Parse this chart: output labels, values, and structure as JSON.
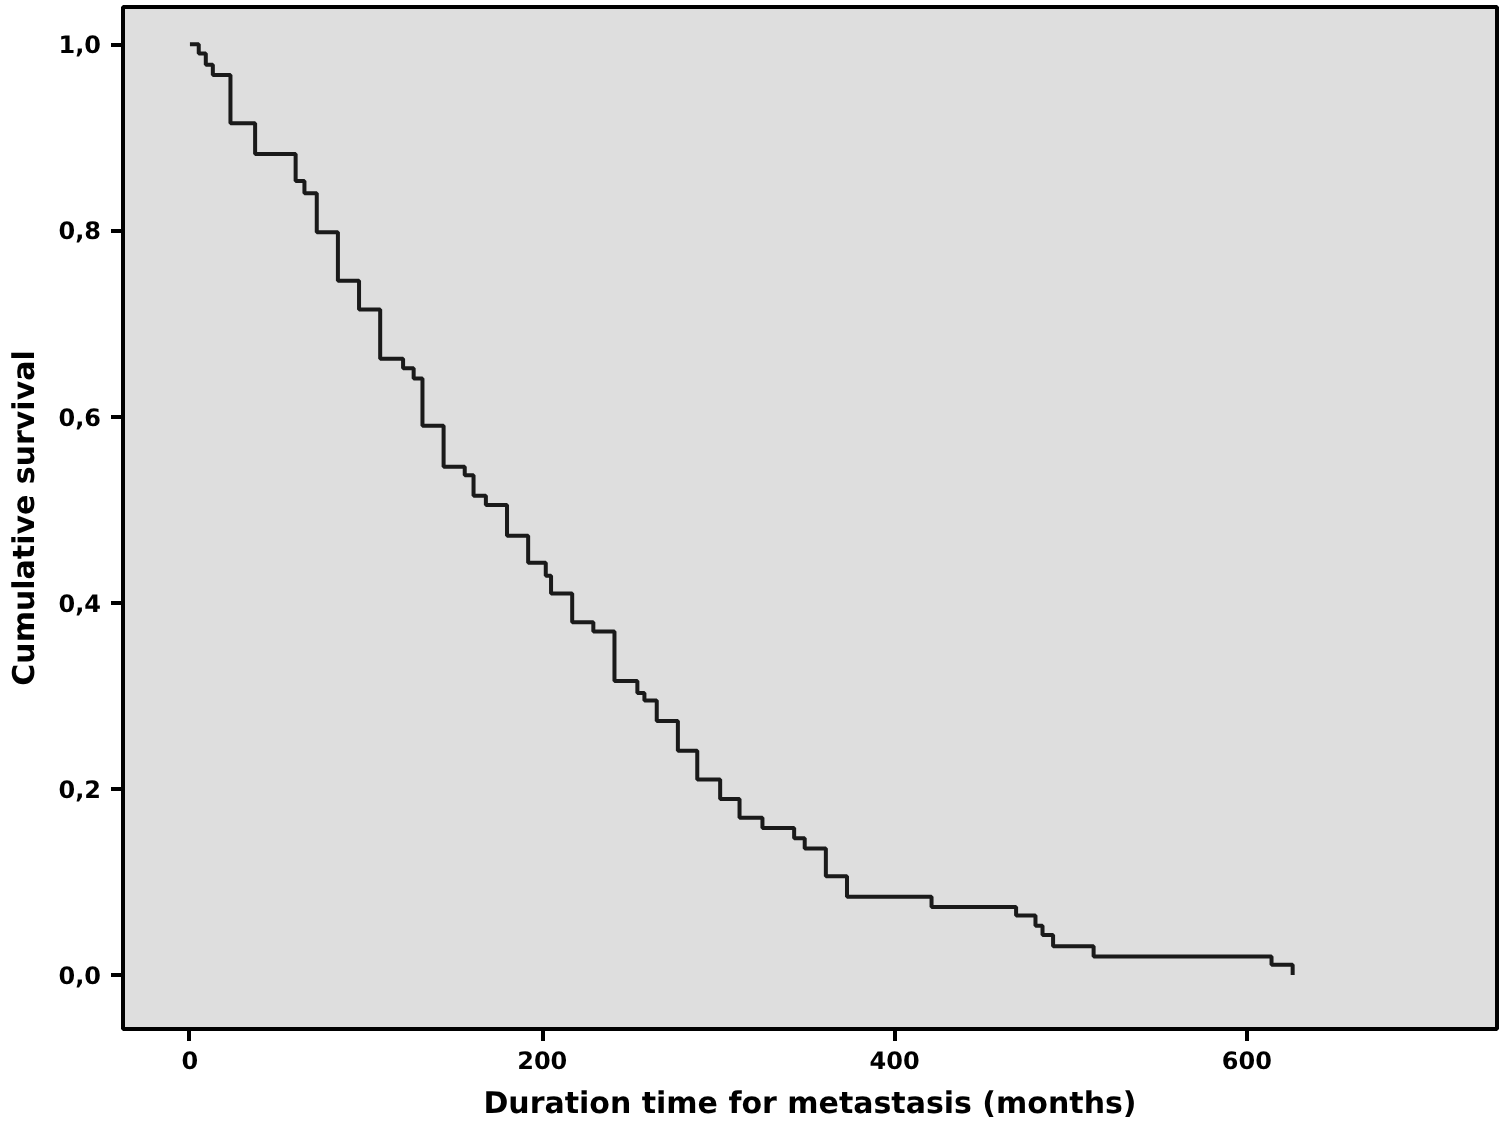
{
  "chart_data": {
    "type": "step",
    "xlabel": "Duration time for metastasis (months)",
    "ylabel": "Cumulative survival",
    "xlim": [
      -38,
      742
    ],
    "ylim": [
      -0.058,
      1.04
    ],
    "xticks": [
      0,
      200,
      400,
      600
    ],
    "yticks": [
      {
        "value": 0,
        "label": "0,0"
      },
      {
        "value": 0.2,
        "label": "0,2"
      },
      {
        "value": 0.4,
        "label": "0,4"
      },
      {
        "value": 0.6,
        "label": "0,6"
      },
      {
        "value": 0.8,
        "label": "0,8"
      },
      {
        "value": 1,
        "label": "1,0"
      }
    ],
    "grid": false,
    "series": [
      {
        "color": "#1a1a1a",
        "x": [
          0,
          5,
          9,
          13,
          23,
          37,
          60,
          65,
          72,
          84,
          96,
          108,
          121,
          127,
          132,
          144,
          156,
          161,
          168,
          180,
          192,
          202,
          205,
          217,
          229,
          241,
          254,
          258,
          265,
          277,
          288,
          301,
          312,
          325,
          343,
          349,
          361,
          373,
          421,
          469,
          480,
          484,
          490,
          513,
          614,
          626
        ],
        "values": [
          1.0,
          0.99,
          0.978,
          0.967,
          0.915,
          0.882,
          0.853,
          0.84,
          0.798,
          0.746,
          0.715,
          0.662,
          0.652,
          0.641,
          0.59,
          0.546,
          0.537,
          0.515,
          0.505,
          0.472,
          0.443,
          0.429,
          0.41,
          0.379,
          0.369,
          0.316,
          0.303,
          0.295,
          0.273,
          0.241,
          0.21,
          0.189,
          0.169,
          0.158,
          0.147,
          0.136,
          0.106,
          0.084,
          0.073,
          0.064,
          0.053,
          0.043,
          0.031,
          0.02,
          0.011,
          0.0
        ]
      }
    ]
  }
}
